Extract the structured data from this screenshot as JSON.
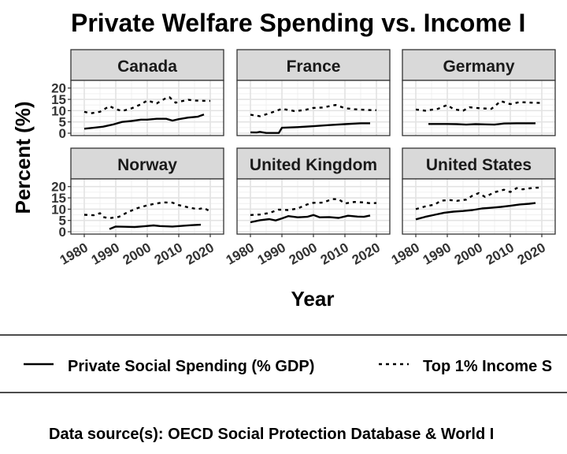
{
  "chart_data": {
    "type": "line",
    "title": "Private Welfare Spending vs. Income I",
    "xlabel": "Year",
    "ylabel": "Percent (%)",
    "xlim": [
      1978,
      2022
    ],
    "ylim": [
      0,
      22
    ],
    "x_ticks": [
      1980,
      1990,
      2000,
      2010,
      2020
    ],
    "y_ticks": [
      0,
      5,
      10,
      15,
      20
    ],
    "grid": true,
    "legend": {
      "position": "bottom",
      "entries": [
        {
          "label": "Private Social Spending (% GDP)",
          "linetype": "solid"
        },
        {
          "label": "Top 1% Income S",
          "linetype": "dashed"
        }
      ]
    },
    "caption": "Data source(s): OECD Social Protection Database & World I",
    "panels": [
      {
        "name": "Canada",
        "series": [
          {
            "key": "spending",
            "x": [
              1980,
              1983,
              1986,
              1989,
              1992,
              1995,
              1998,
              2000,
              2003,
              2006,
              2008,
              2010,
              2013,
              2016,
              2018
            ],
            "y": [
              2,
              2.4,
              2.9,
              3.8,
              5,
              5.4,
              6,
              6,
              6.4,
              6.4,
              5.6,
              6.2,
              6.9,
              7.3,
              8.3
            ]
          },
          {
            "key": "top1",
            "x": [
              1980,
              1982,
              1985,
              1988,
              1990,
              1992,
              1995,
              1998,
              2000,
              2003,
              2006,
              2007,
              2009,
              2011,
              2013,
              2015,
              2017,
              2020
            ],
            "y": [
              9.5,
              8.8,
              9.5,
              12,
              10.7,
              9.8,
              11,
              12.8,
              14.5,
              13.2,
              15.6,
              16,
              13.5,
              14.2,
              14.8,
              14.5,
              14.4,
              14.3
            ]
          }
        ]
      },
      {
        "name": "France",
        "series": [
          {
            "key": "spending",
            "x": [
              1980,
              1982,
              1983,
              1985,
              1986,
              1989,
              1990,
              1995,
              2000,
              2005,
              2010,
              2015,
              2018
            ],
            "y": [
              0.4,
              0.3,
              0.6,
              0.1,
              0.1,
              0.1,
              2.4,
              2.7,
              3.1,
              3.6,
              4,
              4.4,
              4.4
            ]
          },
          {
            "key": "top1",
            "x": [
              1980,
              1983,
              1986,
              1990,
              1994,
              1997,
              2000,
              2003,
              2007,
              2010,
              2013,
              2017,
              2020
            ],
            "y": [
              8.2,
              7.5,
              8.8,
              10.8,
              9.8,
              10.2,
              11.2,
              11.4,
              12.5,
              11.1,
              10.6,
              10.3,
              10.2
            ]
          }
        ]
      },
      {
        "name": "Germany",
        "series": [
          {
            "key": "spending",
            "x": [
              1984,
              1990,
              1993,
              1996,
              1999,
              2002,
              2005,
              2008,
              2012,
              2015,
              2018
            ],
            "y": [
              4.1,
              4.1,
              4,
              3.8,
              4,
              3.9,
              3.8,
              4.3,
              4.4,
              4.4,
              4.4
            ]
          },
          {
            "key": "top1",
            "x": [
              1980,
              1983,
              1987,
              1990,
              1992,
              1995,
              1997,
              2000,
              2004,
              2007,
              2010,
              2013,
              2017,
              2020
            ],
            "y": [
              10.5,
              10,
              10.8,
              12.5,
              10.6,
              10,
              11.5,
              11.1,
              10.8,
              14.2,
              12.9,
              13.8,
              13.5,
              13.4
            ]
          }
        ]
      },
      {
        "name": "Norway",
        "series": [
          {
            "key": "spending",
            "x": [
              1988,
              1990,
              1993,
              1996,
              1999,
              2002,
              2004,
              2008,
              2011,
              2014,
              2017
            ],
            "y": [
              1.2,
              2.3,
              2.2,
              2.1,
              2.4,
              2.8,
              2.5,
              2.3,
              2.6,
              2.9,
              3.1
            ]
          },
          {
            "key": "top1",
            "x": [
              1980,
              1983,
              1985,
              1986,
              1988,
              1991,
              1994,
              1997,
              2000,
              2002,
              2005,
              2008,
              2010,
              2013,
              2016,
              2018,
              2020
            ],
            "y": [
              7.5,
              7.3,
              8.2,
              6.5,
              6,
              6.6,
              8.8,
              10.5,
              11.7,
              12.3,
              13,
              12.9,
              11.8,
              10.8,
              10,
              10.5,
              9
            ]
          }
        ]
      },
      {
        "name": "United Kingdom",
        "series": [
          {
            "key": "spending",
            "x": [
              1980,
              1983,
              1986,
              1988,
              1990,
              1992,
              1995,
              1998,
              2000,
              2002,
              2005,
              2008,
              2011,
              2014,
              2016,
              2018
            ],
            "y": [
              4.2,
              5.1,
              5.6,
              5,
              5.9,
              6.9,
              6.4,
              6.6,
              7.4,
              6.4,
              6.5,
              6.1,
              7.1,
              6.7,
              6.6,
              7.2
            ]
          },
          {
            "key": "top1",
            "x": [
              1980,
              1983,
              1986,
              1989,
              1992,
              1995,
              1998,
              2000,
              2003,
              2006,
              2008,
              2010,
              2013,
              2016,
              2018,
              2020
            ],
            "y": [
              7.4,
              7.6,
              8.3,
              9.8,
              9.6,
              10.3,
              12.1,
              12.8,
              12.9,
              14.5,
              14.4,
              12.5,
              13.2,
              13,
              12.6,
              12.7
            ]
          }
        ]
      },
      {
        "name": "United States",
        "series": [
          {
            "key": "spending",
            "x": [
              1980,
              1983,
              1986,
              1989,
              1992,
              1995,
              1998,
              2001,
              2004,
              2007,
              2010,
              2013,
              2016,
              2018
            ],
            "y": [
              5.5,
              6.6,
              7.5,
              8.4,
              8.9,
              9.2,
              9.6,
              10.3,
              10.6,
              11,
              11.5,
              12.1,
              12.4,
              12.7
            ]
          },
          {
            "key": "top1",
            "x": [
              1980,
              1983,
              1986,
              1988,
              1991,
              1993,
              1996,
              1998,
              2000,
              2002,
              2005,
              2008,
              2010,
              2012,
              2014,
              2016,
              2018,
              2020
            ],
            "y": [
              10,
              11.2,
              12,
              13.8,
              14,
              13.7,
              14.2,
              16,
              17.1,
              15.4,
              17.5,
              18.6,
              17.6,
              19.3,
              18.8,
              19.2,
              19.5,
              19.6
            ]
          }
        ]
      }
    ]
  }
}
